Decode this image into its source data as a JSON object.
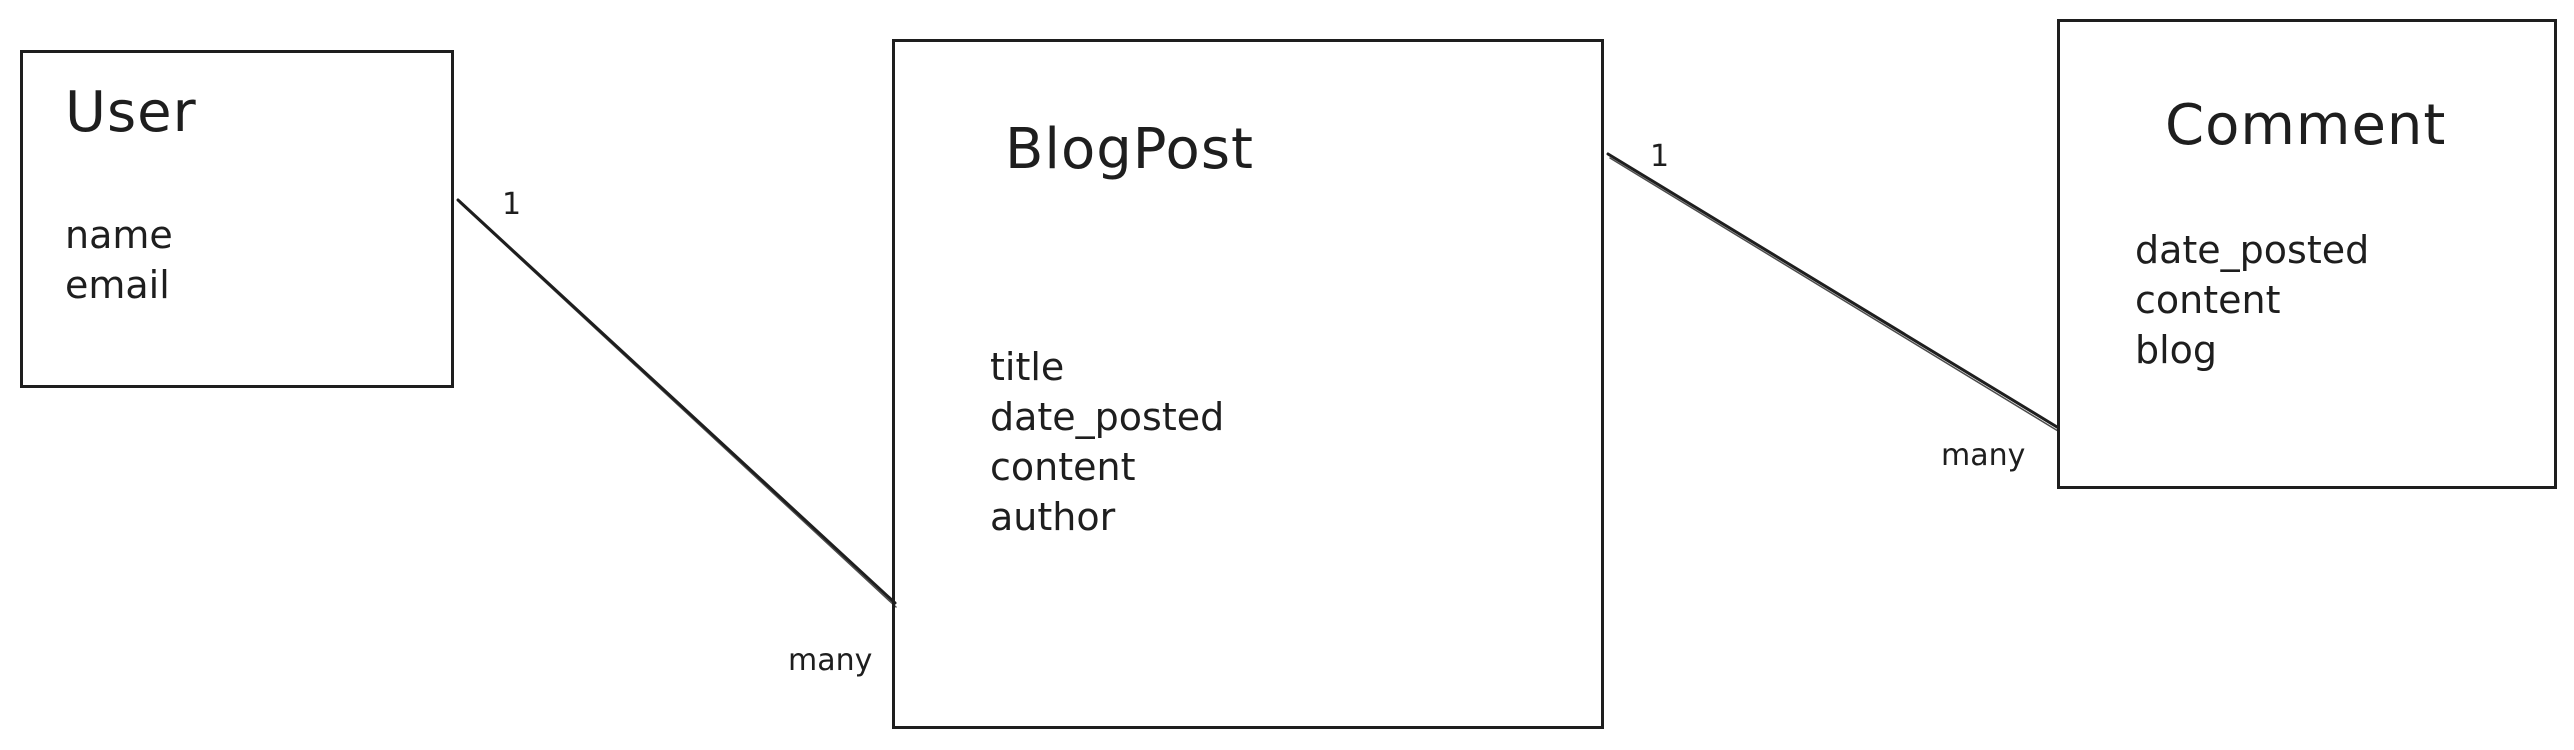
{
  "entities": {
    "user": {
      "title": "User",
      "fields": [
        "name",
        "email"
      ]
    },
    "blog_post": {
      "title": "BlogPost",
      "fields": [
        "title",
        "date_posted",
        "content",
        "author"
      ]
    },
    "comment": {
      "title": "Comment",
      "fields": [
        "date_posted",
        "content",
        "blog"
      ]
    }
  },
  "relations": {
    "user_blogpost": {
      "from_label": "1",
      "to_label": "many"
    },
    "blogpost_comment": {
      "from_label": "1",
      "to_label": "many"
    }
  },
  "colors": {
    "stroke": "#1e1e1e",
    "background": "#ffffff"
  }
}
